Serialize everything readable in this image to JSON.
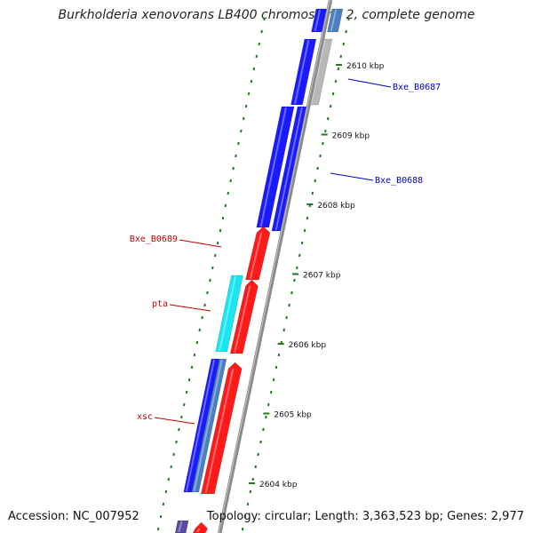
{
  "title": "Burkholderia xenovorans LB400 chromosome 2, complete genome",
  "footer": {
    "accession": "Accession: NC_007952",
    "stats": "Topology: circular; Length: 3,363,523 bp; Genes: 2,977"
  },
  "colors": {
    "backbone": "#8a8a8a",
    "tick": "#1f7a1f",
    "forward_cds": "#ff1a1a",
    "reverse_cds": "#1a1aff",
    "cyan_feature": "#19e6f0",
    "grey_feature": "#b8b8b8",
    "steel_feature": "#4a7fc0",
    "label_red": "#cc0000",
    "label_blue": "#0000cc"
  },
  "ticks": [
    {
      "label": "2610 kbp"
    },
    {
      "label": "2609 kbp"
    },
    {
      "label": "2608 kbp"
    },
    {
      "label": "2607 kbp"
    },
    {
      "label": "2606 kbp"
    },
    {
      "label": "2605 kbp"
    },
    {
      "label": "2604 kbp"
    }
  ],
  "gene_labels": [
    {
      "text": "Bxe_B0687",
      "strand": "reverse"
    },
    {
      "text": "Bxe_B0688",
      "strand": "reverse"
    },
    {
      "text": "Bxe_B0689",
      "strand": "forward"
    },
    {
      "text": "pta",
      "strand": "forward"
    },
    {
      "text": "xsc",
      "strand": "forward"
    }
  ]
}
